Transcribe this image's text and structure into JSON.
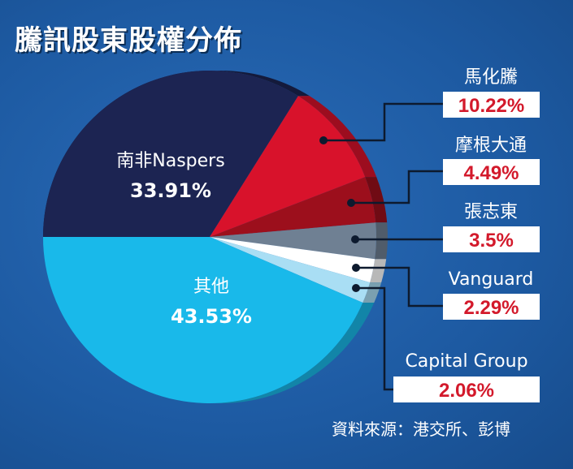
{
  "title": "騰訊股東股權分佈",
  "source": "資料來源：港交所、彭博",
  "chart_data": {
    "type": "pie",
    "title": "騰訊股東股權分佈",
    "slices": [
      {
        "name": "南非Naspers",
        "value": 33.91,
        "label": "33.91%",
        "color": "#1c2452"
      },
      {
        "name": "馬化騰",
        "value": 10.22,
        "label": "10.22%",
        "color": "#d8122b"
      },
      {
        "name": "摩根大通",
        "value": 4.49,
        "label": "4.49%",
        "color": "#9c0f1c"
      },
      {
        "name": "張志東",
        "value": 3.5,
        "label": "3.5%",
        "color": "#6f8093"
      },
      {
        "name": "Vanguard",
        "value": 2.29,
        "label": "2.29%",
        "color": "#ffffff"
      },
      {
        "name": "Capital Group",
        "value": 2.06,
        "label": "2.06%",
        "color": "#a9def4"
      },
      {
        "name": "其他",
        "value": 43.53,
        "label": "43.53%",
        "color": "#19b9ea"
      }
    ]
  }
}
